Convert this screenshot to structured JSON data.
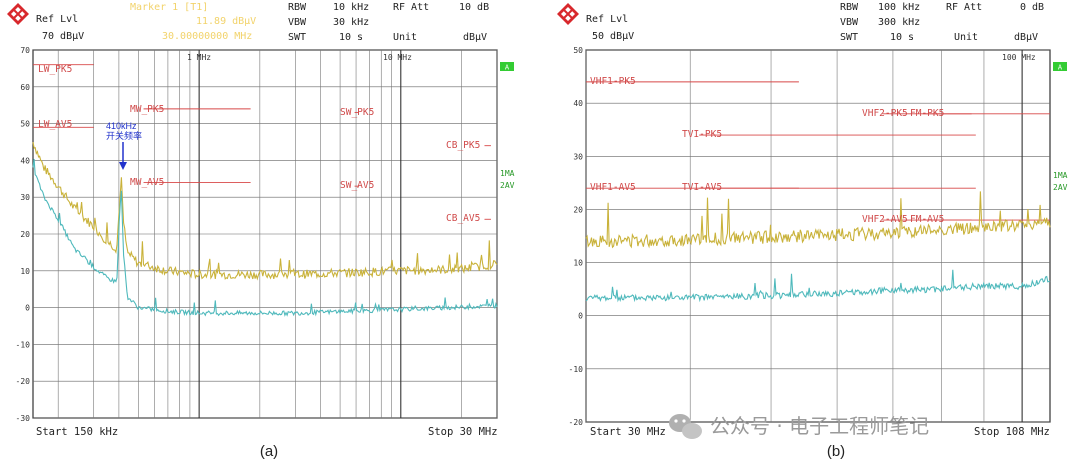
{
  "charts": [
    {
      "id": "a",
      "caption": "(a)",
      "header": {
        "ref_label": "Ref Lvl",
        "ref_value": "70 dBµV",
        "marker_title": "Marker 1 [T1]",
        "marker_level": "11.89 dBµV",
        "marker_freq": "30.00000000 MHz",
        "rbw_label": "RBW",
        "rbw_value": "10 kHz",
        "vbw_label": "VBW",
        "vbw_value": "30 kHz",
        "swt_label": "SWT",
        "swt_value": "10 s",
        "rfatt_label": "RF Att",
        "rfatt_value": "10 dB",
        "unit_label": "Unit",
        "unit_value": "dBµV"
      },
      "decade_labels": [
        "1 MHz",
        "10 MHz"
      ],
      "badge": "A",
      "trace_labels": [
        "1MA",
        "2AV"
      ],
      "footer_start": "Start 150 kHz",
      "footer_stop": "Stop 30 MHz",
      "annotation_freq": "410kHz",
      "annotation_text": "开关频率",
      "limit_labels": [
        "LW_PK5",
        "LW_AV5",
        "MW_PK5",
        "MW_AV5",
        "SW_PK5",
        "SW_AV5",
        "CB_PK5",
        "CB_AV5"
      ]
    },
    {
      "id": "b",
      "caption": "(b)",
      "header": {
        "ref_label": "Ref Lvl",
        "ref_value": "50 dBµV",
        "rbw_label": "RBW",
        "rbw_value": "100 kHz",
        "vbw_label": "VBW",
        "vbw_value": "300 kHz",
        "swt_label": "SWT",
        "swt_value": "10 s",
        "rfatt_label": "RF Att",
        "rfatt_value": "0 dB",
        "unit_label": "Unit",
        "unit_value": "dBµV"
      },
      "decade_labels": [
        "100 MHz"
      ],
      "badge": "A",
      "trace_labels": [
        "1MA",
        "2AV"
      ],
      "footer_start": "Start 30 MHz",
      "footer_stop": "Stop 108 MHz",
      "limit_labels": [
        "VHF1-PK5",
        "VHF2-PK5",
        "FM-PK5",
        "TVI-PK5",
        "VHF1-AV5",
        "TVI-AV5",
        "VHF2-AV5",
        "FM-AV5"
      ]
    }
  ],
  "watermark": "公众号 · 电子工程师笔记",
  "colors": {
    "pk": "#c9b23a",
    "av": "#4fb9bc",
    "limit": "#d84848",
    "grid": "#555555",
    "badge": "#33cc33"
  },
  "chart_data": [
    {
      "type": "line",
      "x_unit": "Hz",
      "x_scale": "log",
      "xlim": [
        150000,
        30000000
      ],
      "ylim": [
        -30,
        70
      ],
      "y_unit": "dBµV",
      "yticks": [
        70,
        60,
        50,
        40,
        30,
        20,
        10,
        0,
        -10,
        -20,
        -30
      ],
      "series": [
        {
          "name": "1MA",
          "color": "#c9b23a",
          "points": [
            [
              150000,
              45
            ],
            [
              170000,
              38
            ],
            [
              200000,
              33
            ],
            [
              240000,
              27
            ],
            [
              300000,
              22
            ],
            [
              350000,
              18
            ],
            [
              390000,
              16
            ],
            [
              405000,
              30
            ],
            [
              410000,
              37
            ],
            [
              420000,
              24
            ],
            [
              440000,
              15
            ],
            [
              500000,
              12
            ],
            [
              700000,
              10
            ],
            [
              1000000,
              9
            ],
            [
              3000000,
              9
            ],
            [
              10000000,
              10
            ],
            [
              20000000,
              10.5
            ],
            [
              30000000,
              11.9
            ]
          ]
        },
        {
          "name": "2AV",
          "color": "#4fb9bc",
          "points": [
            [
              150000,
              38
            ],
            [
              170000,
              30
            ],
            [
              200000,
              24
            ],
            [
              240000,
              16
            ],
            [
              300000,
              11
            ],
            [
              350000,
              8
            ],
            [
              390000,
              7
            ],
            [
              405000,
              26
            ],
            [
              410000,
              35
            ],
            [
              420000,
              16
            ],
            [
              440000,
              3
            ],
            [
              500000,
              0
            ],
            [
              700000,
              -1
            ],
            [
              1000000,
              -1.5
            ],
            [
              3000000,
              -1.5
            ],
            [
              10000000,
              -0.5
            ],
            [
              30000000,
              0.5
            ]
          ]
        }
      ],
      "limits": [
        {
          "name": "LW_PK5",
          "value": 66,
          "x": [
            150000,
            300000
          ]
        },
        {
          "name": "LW_AV5",
          "value": 49,
          "x": [
            150000,
            300000
          ]
        },
        {
          "name": "MW_PK5",
          "value": 54,
          "x": [
            530000,
            1800000
          ]
        },
        {
          "name": "MW_AV5",
          "value": 34,
          "x": [
            530000,
            1800000
          ]
        },
        {
          "name": "SW_PK5",
          "value": 53,
          "x": [
            5900000,
            6200000
          ]
        },
        {
          "name": "SW_AV5",
          "value": 33,
          "x": [
            5900000,
            6200000
          ]
        },
        {
          "name": "CB_PK5",
          "value": 44,
          "x": [
            26000000,
            28000000
          ]
        },
        {
          "name": "CB_AV5",
          "value": 24,
          "x": [
            26000000,
            28000000
          ]
        }
      ]
    },
    {
      "type": "line",
      "x_unit": "Hz",
      "x_scale": "log",
      "xlim": [
        30000000,
        108000000
      ],
      "ylim": [
        -20,
        50
      ],
      "y_unit": "dBµV",
      "yticks": [
        50,
        40,
        30,
        20,
        10,
        0,
        -10,
        -20
      ],
      "series": [
        {
          "name": "1MA",
          "color": "#c9b23a",
          "points": [
            [
              30000000,
              14
            ],
            [
              40000000,
              14.3
            ],
            [
              50000000,
              14.8
            ],
            [
              60000000,
              15.2
            ],
            [
              70000000,
              15.6
            ],
            [
              80000000,
              16.2
            ],
            [
              90000000,
              16.6
            ],
            [
              100000000,
              17
            ],
            [
              108000000,
              17.8
            ]
          ]
        },
        {
          "name": "2AV",
          "color": "#4fb9bc",
          "points": [
            [
              30000000,
              3.3
            ],
            [
              40000000,
              3.4
            ],
            [
              50000000,
              3.8
            ],
            [
              60000000,
              4.2
            ],
            [
              70000000,
              4.8
            ],
            [
              80000000,
              5
            ],
            [
              90000000,
              5.6
            ],
            [
              100000000,
              5.5
            ],
            [
              108000000,
              7
            ]
          ]
        }
      ],
      "limits": [
        {
          "name": "VHF1-PK5",
          "value": 44,
          "x": [
            30000000,
            54000000
          ]
        },
        {
          "name": "VHF2-PK5",
          "value": 38,
          "x": [
            68000000,
            87000000
          ]
        },
        {
          "name": "FM-PK5",
          "value": 38,
          "x": [
            76000000,
            108000000
          ]
        },
        {
          "name": "TVI-PK5",
          "value": 34,
          "x": [
            41000000,
            88000000
          ]
        },
        {
          "name": "VHF1-AV5",
          "value": 24,
          "x": [
            30000000,
            54000000
          ]
        },
        {
          "name": "TVI-AV5",
          "value": 24,
          "x": [
            41000000,
            88000000
          ]
        },
        {
          "name": "VHF2-AV5",
          "value": 18,
          "x": [
            68000000,
            87000000
          ]
        },
        {
          "name": "FM-AV5",
          "value": 18,
          "x": [
            76000000,
            108000000
          ]
        }
      ]
    }
  ]
}
